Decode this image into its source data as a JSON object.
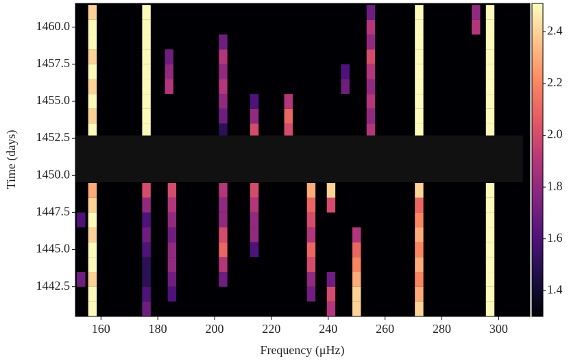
{
  "chart_data": {
    "type": "heatmap",
    "xlabel": "Frequency (μHz)",
    "ylabel": "Time (days)",
    "xlim": [
      151,
      311
    ],
    "ylim": [
      1440.5,
      1461.6
    ],
    "xticks": [
      160,
      180,
      200,
      220,
      240,
      260,
      280,
      300
    ],
    "yticks": [
      {
        "value": 1442.5,
        "label": "1442.5"
      },
      {
        "value": 1445,
        "label": "1445.0"
      },
      {
        "value": 1447.5,
        "label": "1447.5"
      },
      {
        "value": 1450,
        "label": "1450.0"
      },
      {
        "value": 1452.5,
        "label": "1452.5"
      },
      {
        "value": 1455,
        "label": "1455.0"
      },
      {
        "value": 1457.5,
        "label": "1457.5"
      },
      {
        "value": 1460,
        "label": "1460.0"
      }
    ],
    "colormap": "magma",
    "clim": [
      1.3,
      2.51
    ],
    "cticks": [
      1.4,
      1.6,
      1.8,
      {
        "value": 2,
        "label": "2.0"
      },
      2.2,
      2.4
    ],
    "gap_xlim": [
      151,
      308.5
    ],
    "gap_ylim": [
      1449.55,
      1452.7
    ],
    "gap_color": "#111111",
    "x": [
      157,
      157,
      157,
      157,
      157,
      157,
      157,
      157,
      157,
      157,
      157,
      157,
      157,
      157,
      157,
      157,
      157,
      157,
      176,
      176,
      176,
      176,
      176,
      176,
      176,
      176,
      176,
      176,
      176,
      176,
      176,
      176,
      176,
      176,
      176,
      176,
      272,
      272,
      272,
      272,
      272,
      272,
      272,
      272,
      272,
      272,
      272,
      272,
      272,
      272,
      272,
      272,
      272,
      272,
      297,
      297,
      297,
      297,
      297,
      297,
      297,
      297,
      297,
      297,
      297,
      297,
      297,
      297,
      297,
      297,
      297,
      297,
      203,
      203,
      203,
      203,
      203,
      203,
      203,
      214,
      214,
      214,
      184,
      184,
      184,
      226,
      226,
      226,
      255,
      255,
      255,
      255,
      255,
      255,
      255,
      255,
      255,
      246,
      246,
      292,
      292,
      185,
      185,
      185,
      185,
      185,
      185,
      185,
      185,
      203,
      203,
      203,
      203,
      203,
      203,
      203,
      214,
      214,
      214,
      214,
      214,
      234,
      234,
      234,
      234,
      234,
      234,
      234,
      234,
      241,
      241,
      241,
      241,
      241,
      250,
      250,
      250,
      250,
      250,
      250,
      153,
      153
    ],
    "y": [
      1453,
      1454,
      1455,
      1456,
      1457,
      1458,
      1459,
      1460,
      1461,
      1441,
      1442,
      1443,
      1444,
      1445,
      1446,
      1447,
      1448,
      1449,
      1453,
      1454,
      1455,
      1456,
      1457,
      1458,
      1459,
      1460,
      1461,
      1441,
      1442,
      1443,
      1444,
      1445,
      1446,
      1447,
      1448,
      1449,
      1453,
      1454,
      1455,
      1456,
      1457,
      1458,
      1459,
      1460,
      1461,
      1441,
      1442,
      1443,
      1444,
      1445,
      1446,
      1447,
      1448,
      1449,
      1453,
      1454,
      1455,
      1456,
      1457,
      1458,
      1459,
      1460,
      1461,
      1441,
      1442,
      1443,
      1444,
      1445,
      1446,
      1447,
      1448,
      1449,
      1453,
      1454,
      1455,
      1456,
      1457,
      1458,
      1459,
      1453,
      1454,
      1455,
      1456,
      1457,
      1458,
      1453,
      1454,
      1455,
      1453,
      1454,
      1455,
      1456,
      1457,
      1458,
      1459,
      1460,
      1461,
      1456,
      1457,
      1460,
      1461,
      1442,
      1443,
      1444,
      1445,
      1446,
      1447,
      1448,
      1449,
      1443,
      1444,
      1445,
      1446,
      1447,
      1448,
      1449,
      1445,
      1446,
      1447,
      1448,
      1449,
      1442,
      1443,
      1444,
      1445,
      1446,
      1447,
      1448,
      1449,
      1441,
      1442,
      1443,
      1448,
      1449,
      1441,
      1442,
      1443,
      1444,
      1445,
      1446,
      1443,
      1447
    ],
    "values": [
      2.5,
      2.4,
      2.5,
      2.4,
      2.5,
      2.4,
      2.5,
      2.5,
      2.4,
      2.5,
      2.5,
      2.4,
      2.5,
      2.5,
      2.4,
      2.5,
      2.4,
      2.3,
      2.5,
      2.5,
      2.5,
      2.5,
      2.5,
      2.5,
      2.5,
      2.5,
      2.5,
      1.7,
      1.6,
      1.5,
      1.5,
      1.6,
      1.7,
      1.6,
      1.8,
      2.0,
      2.5,
      2.5,
      2.5,
      2.5,
      2.5,
      2.5,
      2.5,
      2.5,
      2.5,
      2.4,
      2.3,
      2.2,
      2.3,
      2.2,
      2.3,
      2.2,
      2.1,
      2.4,
      2.5,
      2.5,
      2.5,
      2.5,
      2.5,
      2.5,
      2.5,
      2.5,
      2.5,
      2.5,
      2.5,
      2.5,
      2.5,
      2.5,
      2.5,
      2.5,
      2.5,
      2.5,
      1.5,
      1.7,
      1.8,
      1.9,
      1.8,
      1.9,
      1.7,
      2.0,
      1.8,
      1.6,
      1.9,
      1.8,
      1.7,
      2.0,
      2.1,
      1.9,
      1.9,
      1.8,
      1.9,
      1.8,
      1.9,
      2.0,
      1.8,
      1.9,
      1.7,
      1.7,
      1.6,
      1.9,
      1.8,
      1.6,
      1.7,
      1.8,
      1.8,
      1.7,
      1.8,
      1.9,
      2.0,
      1.7,
      1.9,
      2.1,
      2.0,
      1.8,
      1.8,
      1.9,
      1.6,
      1.8,
      1.8,
      1.9,
      2.0,
      1.7,
      1.8,
      2.0,
      2.1,
      1.9,
      2.0,
      2.1,
      2.3,
      1.9,
      2.0,
      1.7,
      2.0,
      2.4,
      2.4,
      2.4,
      2.3,
      2.2,
      2.1,
      1.9,
      1.7,
      1.6
    ]
  }
}
